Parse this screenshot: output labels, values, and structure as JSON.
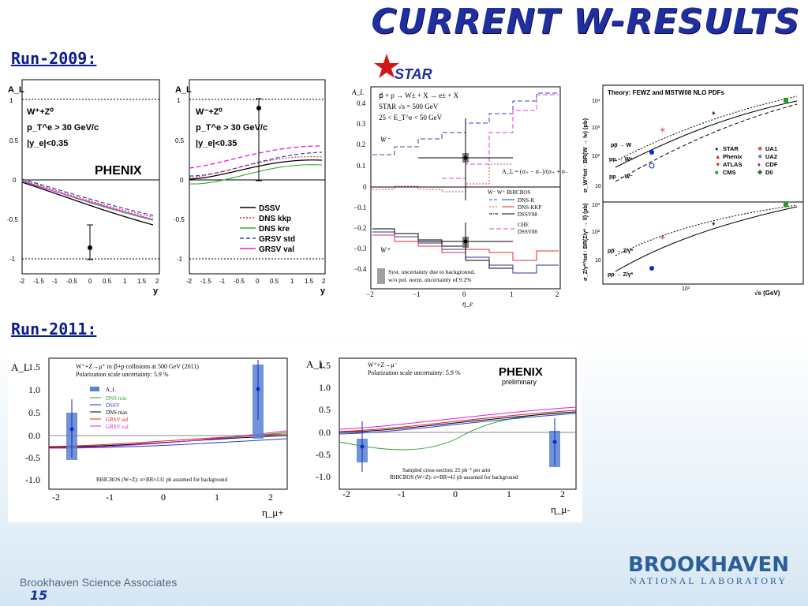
{
  "slide": {
    "title": "CURRENT W-RESULTS",
    "run2009_label": "Run-2009:",
    "run2011_label": "Run-2011:",
    "footer_left": "Brookhaven Science Associates",
    "page_number": "15",
    "logo_line1": "BROOKHAVEN",
    "logo_line2": "NATIONAL LABORATORY"
  },
  "phenix2009": {
    "ylabel": "A_L",
    "left_text": [
      "W⁺+Z⁰",
      "p_T^e > 30 GeV/c",
      "|y_e|<0.35"
    ],
    "right_text": [
      "W⁻+Z⁰",
      "p_T^e > 30 GeV/c",
      "|y_e|<0.35"
    ],
    "logo": "PHENIX",
    "xlabel": "y",
    "legend": [
      "DSSV",
      "DNS kkp",
      "DNS kre",
      "GRSV std",
      "GRSV val"
    ],
    "ytick_labels": [
      "-1",
      "-0.5",
      "0",
      "0.5",
      "1"
    ],
    "xtick_labels": [
      "-2",
      "-1.5",
      "-1",
      "-0.5",
      "0",
      "0.5",
      "1",
      "1.5",
      "2"
    ],
    "colors": {
      "DSSV": "#000000",
      "DNS kkp": "#e0202a",
      "DNS kre": "#30b030",
      "GRSV std": "#2040d0",
      "GRSV val": "#e020e0"
    }
  },
  "star2009": {
    "logo": "STAR",
    "process": "p⃗ + p → W± + X → e± + X",
    "energy": "STAR  √s = 500 GeV",
    "et_cut": "25 < E_T^e < 50 GeV",
    "ylabel": "A_L",
    "xlabel": "η_e",
    "wminus": "W⁻",
    "wplus": "W⁺",
    "formula": "A_L = (σ₊ − σ₋)/(σ₊ + σ₋)",
    "legend_header": "W⁻   W⁺  RHICBOS",
    "legend": [
      "DNS-K",
      "DNS-KKP",
      "DSSV08",
      "CHE",
      "DSSV08"
    ],
    "syst_text": [
      "Syst. uncertainty due to background,",
      "w/o pol. norm. uncertainty of 9.2%"
    ],
    "ytick_labels": [
      "0.4",
      "0.3",
      "0.2",
      "0.1",
      "0",
      "−0.1",
      "−0.2",
      "−0.3",
      "−0.4"
    ],
    "xtick_labels": [
      "−2",
      "−1",
      "0",
      "1",
      "2"
    ]
  },
  "theory": {
    "title": "Theory: FEWZ and MSTW08 NLO PDFs",
    "ylabel_top": "σ_W^tot · BR(W → lν) (pb)",
    "ylabel_bottom": "σ_Z/γ*^tot · BR(Z/γ* → ll) (pb)",
    "xlabel": "√s  (GeV)",
    "top_curves": [
      "pp̄ → W",
      "pp → W⁺",
      "pp → W⁻"
    ],
    "bottom_curves": [
      "pp̄ → Z/γ*",
      "pp → Z/γ*"
    ],
    "legend": [
      "STAR",
      "UA1",
      "Phenix",
      "UA2",
      "ATLAS",
      "CDF",
      "CMS",
      "D0"
    ],
    "legend_markers": [
      "●",
      "✳",
      "▲",
      "✶",
      "▼",
      "♦",
      "■",
      "✚"
    ],
    "legend_colors": [
      "#0a2bd0",
      "#d02020",
      "#d02020",
      "#4040b0",
      "#d02020",
      "#802080",
      "#20a020",
      "#106010"
    ],
    "ytick_top": [
      "10⁴",
      "10³",
      "10²",
      "10"
    ],
    "ytick_bottom": [
      "10³",
      "10²",
      "10"
    ],
    "xtick": "10³"
  },
  "phenix2011_left": {
    "ylabel": "A_L",
    "xlabel": "η_μ+",
    "title_lines": [
      "W⁺+Z→μ⁺ in p⃗+p collisions at 500 GeV (2011)",
      "Polarization scale uncertainty: 5.9 %"
    ],
    "legend": [
      "A_L",
      "DNS min",
      "DSSV",
      "DNS max",
      "GRSV std",
      "GRSV val"
    ],
    "legend_colors": [
      "#3050c0",
      "#30a030",
      "#2040d0",
      "#000000",
      "#e02020",
      "#e020e0"
    ],
    "footnote": "RHICBOS (W+Z): σ×BR≈131 pb assumed for background",
    "ytick_labels": [
      "1.5",
      "1.0",
      "0.5",
      "0.0",
      "-0.5",
      "-1.0"
    ],
    "xtick_labels": [
      "-2",
      "-1",
      "0",
      "1",
      "2"
    ]
  },
  "phenix2011_right": {
    "ylabel": "A_L",
    "xlabel": "η_μ-",
    "title_lines": [
      "W⁺+Z→μ⁻",
      "Polarization scale uncertainty: 5.9 %"
    ],
    "logo": "PHENIX",
    "logo_sub": "preliminary",
    "footnote_lines": [
      "Sampled cross-section: 25 pb⁻¹ per arm",
      "RHICBOS (W+Z): σ×BR≈41 pb assumed for background"
    ],
    "ytick_labels": [
      "1.5",
      "1.0",
      "0.5",
      "0.0",
      "-0.5",
      "-1.0"
    ],
    "xtick_labels": [
      "-2",
      "-1",
      "0",
      "1",
      "2"
    ]
  },
  "chart_data": [
    {
      "type": "scatter",
      "title": "",
      "xlabel": "y",
      "ylabel": "A_L",
      "xlim": [
        -2,
        2
      ],
      "ylim": [
        -1.05,
        1.25
      ],
      "points": [
        {
          "x": 0,
          "y": -0.86,
          "err": 0.3
        }
      ],
      "series": [
        {
          "name": "DSSV",
          "x": [
            -2,
            -1,
            0,
            1,
            2
          ],
          "y": [
            -0.02,
            -0.18,
            -0.32,
            -0.48,
            -0.55
          ]
        },
        {
          "name": "GRSV std",
          "x": [
            -2,
            -1,
            0,
            1,
            2
          ],
          "y": [
            -0.01,
            -0.15,
            -0.29,
            -0.43,
            -0.51
          ]
        }
      ]
    },
    {
      "type": "scatter",
      "title": "",
      "xlabel": "y",
      "ylabel": "A_L",
      "xlim": [
        -2,
        2
      ],
      "ylim": [
        -1.05,
        1.25
      ],
      "points": [
        {
          "x": 0,
          "y": 0.92,
          "err": 0.45
        }
      ],
      "series": [
        {
          "name": "GRSV val",
          "x": [
            -2,
            -1,
            0,
            1,
            2
          ],
          "y": [
            0.14,
            0.2,
            0.33,
            0.42,
            0.4
          ]
        },
        {
          "name": "DSSV",
          "x": [
            -2,
            -1,
            0,
            1,
            2
          ],
          "y": [
            0.0,
            0.02,
            0.15,
            0.27,
            0.28
          ]
        }
      ]
    },
    {
      "type": "scatter",
      "xlabel": "η_e",
      "ylabel": "A_L",
      "xlim": [
        -2,
        2
      ],
      "ylim": [
        -0.45,
        0.45
      ],
      "points": [
        {
          "x": 0,
          "y": 0.13,
          "err": 0.33,
          "series": "W⁻"
        },
        {
          "x": 0,
          "y": -0.27,
          "err": 0.19,
          "series": "W⁺"
        }
      ]
    },
    {
      "type": "scatter",
      "xlabel": "η_μ+",
      "ylabel": "A_L",
      "xlim": [
        -2.3,
        2.3
      ],
      "ylim": [
        -1.1,
        1.65
      ],
      "points": [
        {
          "x": -1.72,
          "y": 0.14,
          "err": 0.6
        },
        {
          "x": 1.72,
          "y": 1.02,
          "err": 0.6
        }
      ]
    },
    {
      "type": "scatter",
      "xlabel": "η_μ-",
      "ylabel": "A_L",
      "xlim": [
        -2.3,
        2.3
      ],
      "ylim": [
        -1.1,
        1.65
      ],
      "points": [
        {
          "x": -1.72,
          "y": -0.32,
          "err": 0.55
        },
        {
          "x": 1.72,
          "y": -0.22,
          "err": 0.55
        }
      ]
    }
  ]
}
